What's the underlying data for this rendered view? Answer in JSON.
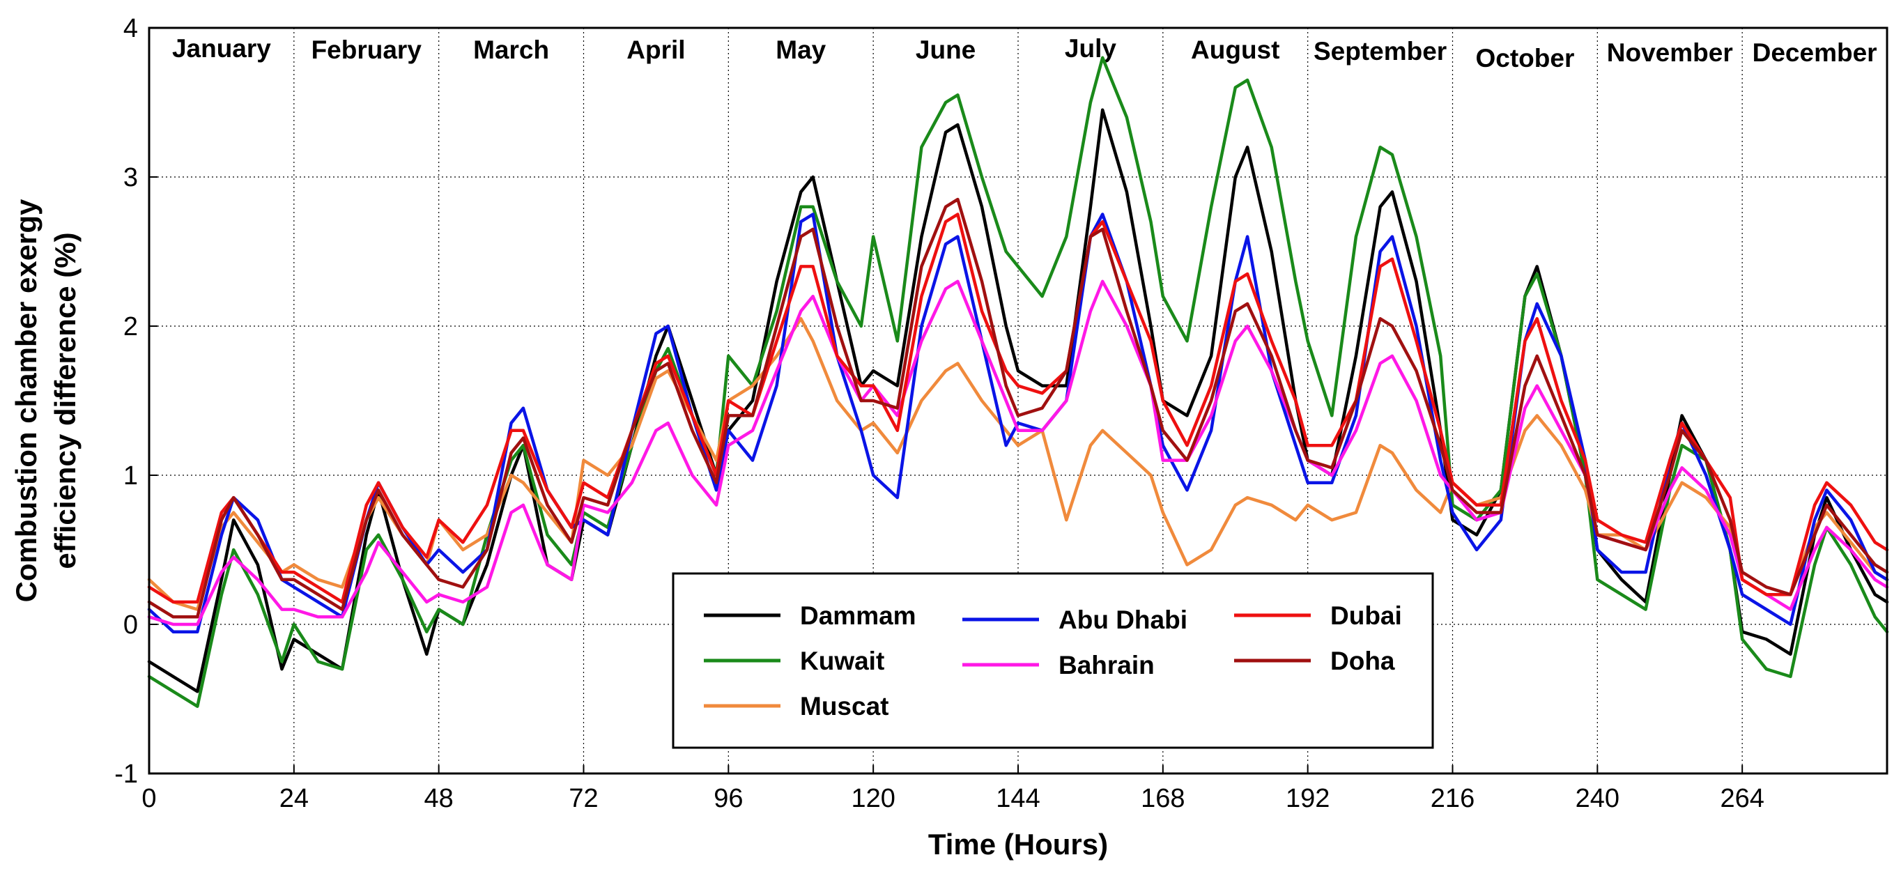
{
  "chart_data": {
    "type": "line",
    "title": "",
    "xlabel": "Time (Hours)",
    "ylabel": "Combustion chamber exergy efficiency difference (%)",
    "ylabel_lines": [
      "Combustion chamber exergy",
      "efficiency difference (%)"
    ],
    "xlim": [
      0,
      288
    ],
    "ylim": [
      -1,
      4
    ],
    "xticks": [
      0,
      24,
      48,
      72,
      96,
      120,
      144,
      168,
      192,
      216,
      240,
      264
    ],
    "xtick_labels": [
      "0",
      "24",
      "48",
      "72",
      "96",
      "120",
      "144",
      "168",
      "192",
      "216",
      "240",
      "264"
    ],
    "yticks": [
      -1,
      0,
      1,
      2,
      3,
      4
    ],
    "ytick_labels": [
      "-1",
      "0",
      "1",
      "2",
      "3",
      "4"
    ],
    "grid": true,
    "months": [
      "January",
      "February",
      "March",
      "April",
      "May",
      "June",
      "July",
      "August",
      "September",
      "October",
      "November",
      "December"
    ],
    "month_bounds": [
      24,
      48,
      72,
      96,
      120,
      144,
      168,
      192,
      216,
      240,
      264
    ],
    "legend_position": "bottom-center",
    "series": [
      {
        "name": "Dammam",
        "color": "#000000",
        "x": [
          0,
          4,
          8,
          12,
          14,
          18,
          22,
          24,
          28,
          32,
          36,
          38,
          42,
          46,
          48,
          52,
          56,
          60,
          62,
          66,
          70,
          72,
          76,
          80,
          84,
          86,
          90,
          94,
          96,
          100,
          104,
          108,
          110,
          114,
          118,
          120,
          124,
          128,
          132,
          134,
          138,
          142,
          144,
          148,
          152,
          156,
          158,
          162,
          166,
          168,
          172,
          176,
          180,
          182,
          186,
          190,
          192,
          196,
          200,
          204,
          206,
          210,
          214,
          216,
          220,
          224,
          228,
          230,
          234,
          238,
          240,
          244,
          248,
          252,
          254,
          258,
          262,
          264,
          268,
          272,
          276,
          278,
          282,
          286,
          288
        ],
        "values": [
          -0.25,
          -0.35,
          -0.45,
          0.3,
          0.7,
          0.4,
          -0.3,
          -0.1,
          -0.2,
          -0.3,
          0.6,
          0.9,
          0.3,
          -0.2,
          0.1,
          0.0,
          0.4,
          1.0,
          1.2,
          0.4,
          0.3,
          0.7,
          0.6,
          1.2,
          1.8,
          2.0,
          1.5,
          1.0,
          1.3,
          1.5,
          2.3,
          2.9,
          3.0,
          2.3,
          1.6,
          1.7,
          1.6,
          2.6,
          3.3,
          3.35,
          2.8,
          2.0,
          1.7,
          1.6,
          1.6,
          2.8,
          3.45,
          2.9,
          2.0,
          1.5,
          1.4,
          1.8,
          3.0,
          3.2,
          2.5,
          1.5,
          1.1,
          1.0,
          1.8,
          2.8,
          2.9,
          2.3,
          1.3,
          0.7,
          0.6,
          0.9,
          2.2,
          2.4,
          1.8,
          1.0,
          0.5,
          0.3,
          0.15,
          1.0,
          1.4,
          1.1,
          0.5,
          -0.05,
          -0.1,
          -0.2,
          0.6,
          0.85,
          0.5,
          0.2,
          0.15
        ]
      },
      {
        "name": "Kuwait",
        "color": "#1a8a1a",
        "x": [
          0,
          4,
          8,
          12,
          14,
          18,
          22,
          24,
          28,
          32,
          36,
          38,
          42,
          46,
          48,
          52,
          56,
          60,
          62,
          66,
          70,
          72,
          76,
          80,
          84,
          86,
          90,
          94,
          96,
          100,
          104,
          108,
          110,
          114,
          118,
          120,
          124,
          128,
          132,
          134,
          138,
          142,
          144,
          148,
          152,
          156,
          158,
          162,
          166,
          168,
          172,
          176,
          180,
          182,
          186,
          190,
          192,
          196,
          200,
          204,
          206,
          210,
          214,
          216,
          220,
          224,
          228,
          230,
          234,
          238,
          240,
          244,
          248,
          252,
          254,
          258,
          262,
          264,
          268,
          272,
          276,
          278,
          282,
          286,
          288
        ],
        "values": [
          -0.35,
          -0.45,
          -0.55,
          0.2,
          0.5,
          0.2,
          -0.25,
          0.0,
          -0.25,
          -0.3,
          0.5,
          0.6,
          0.3,
          -0.05,
          0.1,
          0.0,
          0.6,
          1.1,
          1.2,
          0.6,
          0.4,
          0.75,
          0.65,
          1.2,
          1.7,
          1.85,
          1.4,
          1.0,
          1.8,
          1.6,
          2.1,
          2.8,
          2.8,
          2.3,
          2.0,
          2.6,
          1.9,
          3.2,
          3.5,
          3.55,
          3.0,
          2.5,
          2.4,
          2.2,
          2.6,
          3.5,
          3.8,
          3.4,
          2.7,
          2.2,
          1.9,
          2.8,
          3.6,
          3.65,
          3.2,
          2.3,
          1.9,
          1.4,
          2.6,
          3.2,
          3.15,
          2.6,
          1.8,
          0.8,
          0.7,
          0.9,
          2.2,
          2.35,
          1.8,
          1.0,
          0.3,
          0.2,
          0.1,
          0.9,
          1.2,
          1.1,
          0.5,
          -0.1,
          -0.3,
          -0.35,
          0.4,
          0.65,
          0.4,
          0.05,
          -0.05
        ]
      },
      {
        "name": "Muscat",
        "color": "#f08a3c",
        "x": [
          0,
          4,
          8,
          12,
          14,
          18,
          22,
          24,
          28,
          32,
          36,
          38,
          42,
          46,
          48,
          52,
          56,
          60,
          62,
          66,
          70,
          72,
          76,
          80,
          84,
          86,
          90,
          94,
          96,
          100,
          104,
          108,
          110,
          114,
          118,
          120,
          124,
          128,
          132,
          134,
          138,
          142,
          144,
          148,
          152,
          156,
          158,
          162,
          166,
          168,
          172,
          176,
          180,
          182,
          186,
          190,
          192,
          196,
          200,
          204,
          206,
          210,
          214,
          216,
          220,
          224,
          228,
          230,
          234,
          238,
          240,
          244,
          248,
          252,
          254,
          258,
          262,
          264,
          268,
          272,
          276,
          278,
          282,
          286,
          288
        ],
        "values": [
          0.3,
          0.15,
          0.1,
          0.65,
          0.75,
          0.55,
          0.35,
          0.4,
          0.3,
          0.25,
          0.7,
          0.85,
          0.6,
          0.4,
          0.7,
          0.5,
          0.6,
          1.0,
          0.95,
          0.75,
          0.55,
          1.1,
          1.0,
          1.2,
          1.65,
          1.7,
          1.4,
          1.1,
          1.5,
          1.6,
          1.8,
          2.05,
          1.9,
          1.5,
          1.3,
          1.35,
          1.15,
          1.5,
          1.7,
          1.75,
          1.5,
          1.3,
          1.2,
          1.3,
          0.7,
          1.2,
          1.3,
          1.15,
          1.0,
          0.75,
          0.4,
          0.5,
          0.8,
          0.85,
          0.8,
          0.7,
          0.8,
          0.7,
          0.75,
          1.2,
          1.15,
          0.9,
          0.75,
          0.95,
          0.8,
          0.85,
          1.3,
          1.4,
          1.2,
          0.9,
          0.6,
          0.6,
          0.5,
          0.8,
          0.95,
          0.85,
          0.65,
          0.3,
          0.2,
          0.2,
          0.65,
          0.75,
          0.55,
          0.35,
          0.3
        ]
      },
      {
        "name": "Abu Dhabi",
        "color": "#0a14e6",
        "x": [
          0,
          4,
          8,
          12,
          14,
          18,
          22,
          24,
          28,
          32,
          36,
          38,
          42,
          46,
          48,
          52,
          56,
          60,
          62,
          66,
          70,
          72,
          76,
          80,
          84,
          86,
          90,
          94,
          96,
          100,
          104,
          108,
          110,
          114,
          118,
          120,
          124,
          128,
          132,
          134,
          138,
          142,
          144,
          148,
          152,
          156,
          158,
          162,
          166,
          168,
          172,
          176,
          180,
          182,
          186,
          190,
          192,
          196,
          200,
          204,
          206,
          210,
          214,
          216,
          220,
          224,
          228,
          230,
          234,
          238,
          240,
          244,
          248,
          252,
          254,
          258,
          262,
          264,
          268,
          272,
          276,
          278,
          282,
          286,
          288
        ],
        "values": [
          0.1,
          -0.05,
          -0.05,
          0.6,
          0.85,
          0.7,
          0.3,
          0.25,
          0.15,
          0.05,
          0.7,
          0.95,
          0.65,
          0.4,
          0.5,
          0.35,
          0.5,
          1.35,
          1.45,
          0.9,
          0.65,
          0.7,
          0.6,
          1.3,
          1.95,
          2.0,
          1.4,
          0.9,
          1.3,
          1.1,
          1.6,
          2.7,
          2.75,
          1.8,
          1.3,
          1.0,
          0.85,
          2.0,
          2.55,
          2.6,
          1.9,
          1.2,
          1.35,
          1.3,
          1.5,
          2.6,
          2.75,
          2.3,
          1.6,
          1.2,
          0.9,
          1.3,
          2.3,
          2.6,
          1.7,
          1.2,
          0.95,
          0.95,
          1.4,
          2.5,
          2.6,
          2.0,
          1.1,
          0.75,
          0.5,
          0.7,
          1.9,
          2.15,
          1.8,
          1.1,
          0.5,
          0.35,
          0.35,
          1.1,
          1.35,
          1.0,
          0.5,
          0.2,
          0.1,
          0.0,
          0.7,
          0.9,
          0.7,
          0.35,
          0.3
        ]
      },
      {
        "name": "Bahrain",
        "color": "#ff18e6",
        "x": [
          0,
          4,
          8,
          12,
          14,
          18,
          22,
          24,
          28,
          32,
          36,
          38,
          42,
          46,
          48,
          52,
          56,
          60,
          62,
          66,
          70,
          72,
          76,
          80,
          84,
          86,
          90,
          94,
          96,
          100,
          104,
          108,
          110,
          114,
          118,
          120,
          124,
          128,
          132,
          134,
          138,
          142,
          144,
          148,
          152,
          156,
          158,
          162,
          166,
          168,
          172,
          176,
          180,
          182,
          186,
          190,
          192,
          196,
          200,
          204,
          206,
          210,
          214,
          216,
          220,
          224,
          228,
          230,
          234,
          238,
          240,
          244,
          248,
          252,
          254,
          258,
          262,
          264,
          268,
          272,
          276,
          278,
          282,
          286,
          288
        ],
        "values": [
          0.05,
          0.0,
          0.0,
          0.35,
          0.45,
          0.3,
          0.1,
          0.1,
          0.05,
          0.05,
          0.35,
          0.55,
          0.35,
          0.15,
          0.2,
          0.15,
          0.25,
          0.75,
          0.8,
          0.4,
          0.3,
          0.8,
          0.75,
          0.95,
          1.3,
          1.35,
          1.0,
          0.8,
          1.2,
          1.3,
          1.7,
          2.1,
          2.2,
          1.8,
          1.5,
          1.6,
          1.4,
          1.9,
          2.25,
          2.3,
          1.9,
          1.5,
          1.3,
          1.3,
          1.5,
          2.1,
          2.3,
          2.0,
          1.6,
          1.1,
          1.1,
          1.4,
          1.9,
          2.0,
          1.7,
          1.3,
          1.1,
          1.0,
          1.3,
          1.75,
          1.8,
          1.5,
          1.0,
          0.9,
          0.7,
          0.75,
          1.45,
          1.6,
          1.3,
          1.0,
          0.6,
          0.55,
          0.5,
          0.9,
          1.05,
          0.9,
          0.6,
          0.3,
          0.2,
          0.1,
          0.5,
          0.65,
          0.5,
          0.3,
          0.25
        ]
      },
      {
        "name": "Dubai",
        "color": "#ee1010",
        "x": [
          0,
          4,
          8,
          12,
          14,
          18,
          22,
          24,
          28,
          32,
          36,
          38,
          42,
          46,
          48,
          52,
          56,
          60,
          62,
          66,
          70,
          72,
          76,
          80,
          84,
          86,
          90,
          94,
          96,
          100,
          104,
          108,
          110,
          114,
          118,
          120,
          124,
          128,
          132,
          134,
          138,
          142,
          144,
          148,
          152,
          156,
          158,
          162,
          166,
          168,
          172,
          176,
          180,
          182,
          186,
          190,
          192,
          196,
          200,
          204,
          206,
          210,
          214,
          216,
          220,
          224,
          228,
          230,
          234,
          238,
          240,
          244,
          248,
          252,
          254,
          258,
          262,
          264,
          268,
          272,
          276,
          278,
          282,
          286,
          288
        ],
        "values": [
          0.25,
          0.15,
          0.15,
          0.75,
          0.85,
          0.6,
          0.35,
          0.35,
          0.25,
          0.15,
          0.8,
          0.95,
          0.65,
          0.45,
          0.7,
          0.55,
          0.8,
          1.3,
          1.3,
          0.9,
          0.65,
          0.95,
          0.85,
          1.3,
          1.75,
          1.8,
          1.4,
          1.0,
          1.5,
          1.4,
          1.9,
          2.4,
          2.4,
          1.8,
          1.6,
          1.6,
          1.3,
          2.2,
          2.7,
          2.75,
          2.1,
          1.7,
          1.6,
          1.55,
          1.7,
          2.6,
          2.7,
          2.3,
          1.9,
          1.5,
          1.2,
          1.6,
          2.3,
          2.35,
          1.9,
          1.5,
          1.2,
          1.2,
          1.5,
          2.4,
          2.45,
          1.9,
          1.3,
          0.95,
          0.8,
          0.8,
          1.9,
          2.05,
          1.5,
          1.1,
          0.7,
          0.6,
          0.55,
          1.1,
          1.35,
          1.1,
          0.85,
          0.3,
          0.2,
          0.2,
          0.8,
          0.95,
          0.8,
          0.55,
          0.5
        ]
      },
      {
        "name": "Doha",
        "color": "#a01010",
        "x": [
          0,
          4,
          8,
          12,
          14,
          18,
          22,
          24,
          28,
          32,
          36,
          38,
          42,
          46,
          48,
          52,
          56,
          60,
          62,
          66,
          70,
          72,
          76,
          80,
          84,
          86,
          90,
          94,
          96,
          100,
          104,
          108,
          110,
          114,
          118,
          120,
          124,
          128,
          132,
          134,
          138,
          142,
          144,
          148,
          152,
          156,
          158,
          162,
          166,
          168,
          172,
          176,
          180,
          182,
          186,
          190,
          192,
          196,
          200,
          204,
          206,
          210,
          214,
          216,
          220,
          224,
          228,
          230,
          234,
          238,
          240,
          244,
          248,
          252,
          254,
          258,
          262,
          264,
          268,
          272,
          276,
          278,
          282,
          286,
          288
        ],
        "values": [
          0.15,
          0.05,
          0.05,
          0.7,
          0.85,
          0.6,
          0.3,
          0.3,
          0.2,
          0.1,
          0.7,
          0.9,
          0.6,
          0.4,
          0.3,
          0.25,
          0.5,
          1.15,
          1.25,
          0.8,
          0.55,
          0.85,
          0.8,
          1.3,
          1.7,
          1.75,
          1.3,
          0.95,
          1.4,
          1.4,
          2.0,
          2.6,
          2.65,
          2.0,
          1.5,
          1.5,
          1.45,
          2.4,
          2.8,
          2.85,
          2.3,
          1.6,
          1.4,
          1.45,
          1.7,
          2.6,
          2.65,
          2.1,
          1.6,
          1.3,
          1.1,
          1.5,
          2.1,
          2.15,
          1.8,
          1.3,
          1.1,
          1.05,
          1.5,
          2.05,
          2.0,
          1.7,
          1.2,
          0.9,
          0.75,
          0.75,
          1.6,
          1.8,
          1.4,
          1.0,
          0.6,
          0.55,
          0.5,
          1.0,
          1.3,
          1.1,
          0.7,
          0.35,
          0.25,
          0.2,
          0.6,
          0.8,
          0.6,
          0.4,
          0.35
        ]
      }
    ]
  }
}
